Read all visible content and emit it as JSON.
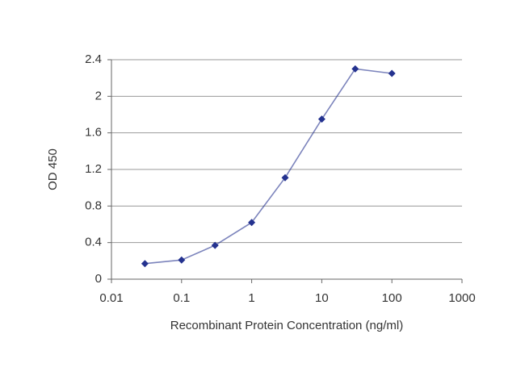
{
  "chart_data": {
    "type": "line",
    "x_label": "Recombinant Protein Concentration (ng/ml)",
    "y_label": "OD 450",
    "x": [
      0.03,
      0.1,
      0.3,
      1,
      3,
      10,
      30,
      100
    ],
    "values": [
      0.17,
      0.21,
      0.37,
      0.62,
      1.11,
      1.75,
      2.3,
      2.25
    ],
    "color": "#24328f",
    "xscale": "log",
    "xlim": [
      0.01,
      1000
    ],
    "xticks": [
      0.01,
      0.1,
      1,
      10,
      100,
      1000
    ],
    "ylim": [
      0,
      2.4
    ],
    "yticks": [
      0,
      0.4,
      0.8,
      1.2,
      1.6,
      2,
      2.4
    ],
    "grid": true
  }
}
